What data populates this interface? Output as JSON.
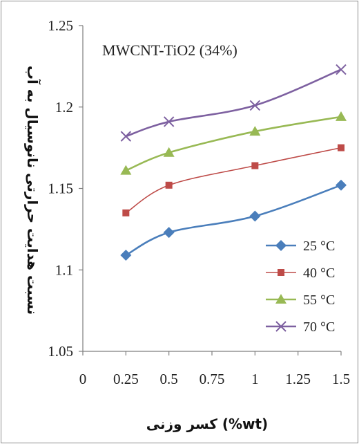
{
  "chart_data": {
    "type": "line",
    "title": "MWCNT-TiO2 (34%)",
    "xlabel": "کسر وزنی (%wt)",
    "ylabel": "نسبت هدایت حرارتی نانوسیال به آب",
    "xlim": [
      0,
      1.5
    ],
    "ylim": [
      1.05,
      1.25
    ],
    "xticks": [
      "0",
      "0.25",
      "0.5",
      "0.75",
      "1",
      "1.25",
      "1.5"
    ],
    "yticks": [
      "1.05",
      "1.1",
      "1.15",
      "1.2",
      "1.25"
    ],
    "x": [
      0.25,
      0.5,
      1.0,
      1.5
    ],
    "legend_position": "right",
    "series": [
      {
        "name": "25 °C",
        "values": [
          1.109,
          1.123,
          1.133,
          1.152
        ],
        "color": "#4a7ebb",
        "marker": "diamond"
      },
      {
        "name": "40 °C",
        "values": [
          1.135,
          1.152,
          1.164,
          1.175
        ],
        "color": "#be4b48",
        "marker": "square"
      },
      {
        "name": "55 °C",
        "values": [
          1.161,
          1.172,
          1.185,
          1.194
        ],
        "color": "#98b954",
        "marker": "triangle"
      },
      {
        "name": "70 °C",
        "values": [
          1.182,
          1.191,
          1.201,
          1.223
        ],
        "color": "#7d60a0",
        "marker": "x"
      }
    ]
  }
}
